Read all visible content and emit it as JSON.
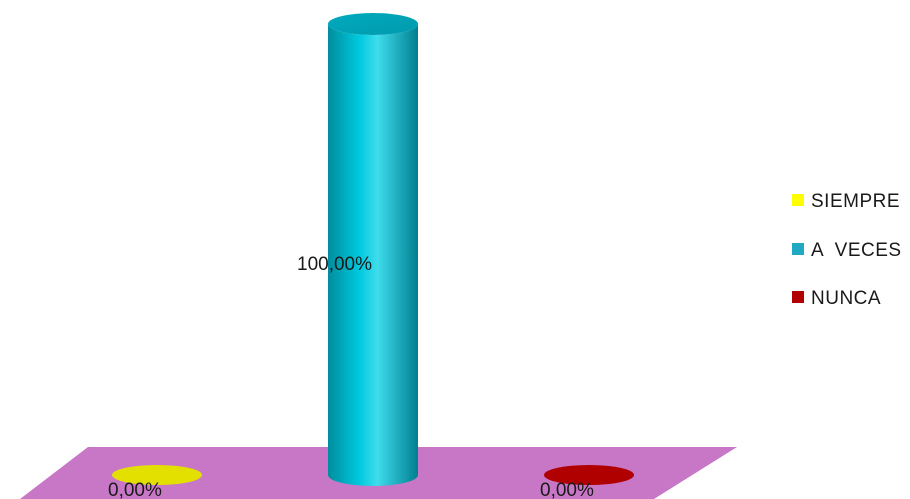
{
  "chart_data": {
    "type": "bar",
    "style": "3d-cylinder",
    "categories": [
      "SIEMPRE",
      "A  VECES",
      "NUNCA"
    ],
    "values": [
      0,
      100,
      0
    ],
    "data_labels": [
      "0,00%",
      "100,00%",
      "0,00%"
    ],
    "colors": [
      "#e3e000",
      "#00b6cc",
      "#b00000"
    ],
    "floor_color": "#c877c6",
    "ylim": [
      0,
      100
    ],
    "grid": false,
    "legend": {
      "placement": "right",
      "entries": [
        {
          "label": "SIEMPRE",
          "color": "#ffff00"
        },
        {
          "label": "A  VECES",
          "color": "#1fa9c2"
        },
        {
          "label": "NUNCA",
          "color": "#b00000"
        }
      ]
    }
  }
}
